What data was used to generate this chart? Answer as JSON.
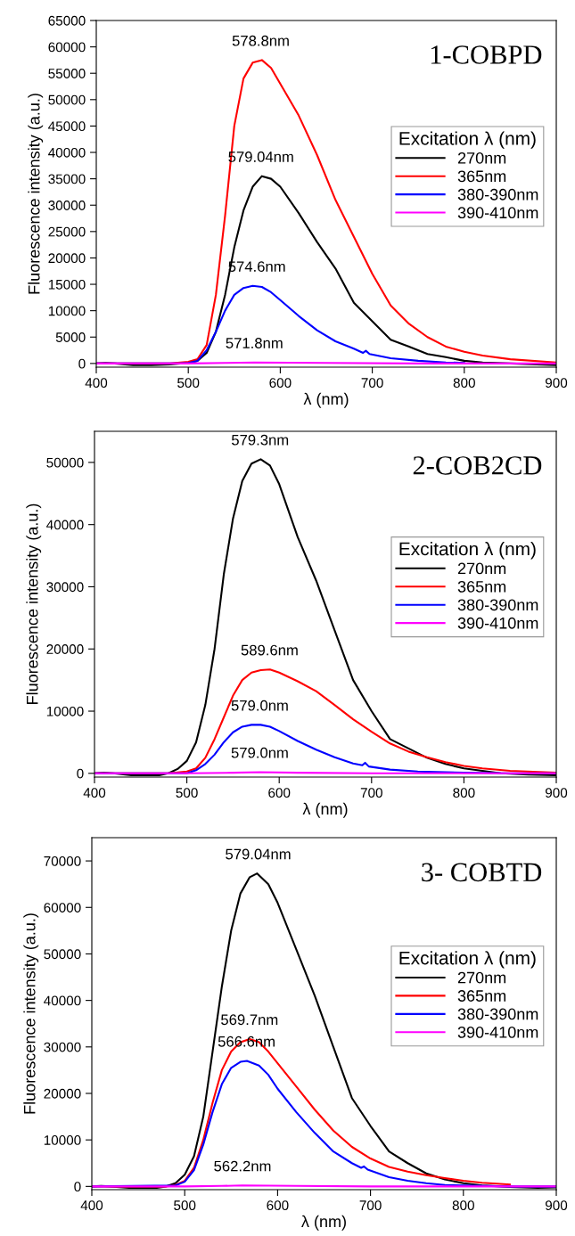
{
  "chart_data": [
    {
      "type": "line",
      "title": "1-COBPD",
      "xlabel": "λ (nm)",
      "ylabel": "Fluorescence intensity (a.u.)",
      "legend_title": "Excitation λ (nm)",
      "legend": "right",
      "grid": false,
      "marker": "none",
      "line_style": "solid",
      "xlim": [
        400,
        900
      ],
      "xticks": [
        400,
        500,
        600,
        700,
        800,
        900
      ],
      "ylim": [
        -700,
        65000
      ],
      "yticks": [
        0,
        5000,
        10000,
        15000,
        20000,
        25000,
        30000,
        35000,
        40000,
        45000,
        50000,
        55000,
        60000,
        65000
      ],
      "series": [
        {
          "name": "270nm",
          "color": "#000000",
          "x": [
            400,
            410,
            420,
            440,
            460,
            480,
            500,
            510,
            520,
            530,
            540,
            550,
            560,
            570,
            580,
            590,
            600,
            620,
            640,
            660,
            680,
            700,
            720,
            740,
            760,
            780,
            800,
            820,
            850,
            900
          ],
          "values": [
            0,
            100,
            0,
            -300,
            -300,
            -200,
            100,
            500,
            2000,
            6000,
            13000,
            22000,
            29000,
            33500,
            35500,
            35000,
            33500,
            28500,
            23000,
            18000,
            11500,
            8000,
            4500,
            3200,
            1800,
            1200,
            500,
            200,
            0,
            -300
          ]
        },
        {
          "name": "365nm",
          "color": "#ff0000",
          "x": [
            400,
            480,
            500,
            510,
            520,
            530,
            540,
            550,
            560,
            570,
            580,
            590,
            600,
            620,
            640,
            660,
            680,
            700,
            720,
            740,
            760,
            780,
            800,
            820,
            850,
            900
          ],
          "values": [
            0,
            0,
            300,
            800,
            3500,
            13000,
            28000,
            45000,
            54000,
            57000,
            57500,
            56000,
            53000,
            47000,
            39500,
            31000,
            24000,
            17000,
            11000,
            7500,
            5000,
            3200,
            2200,
            1500,
            800,
            200
          ]
        },
        {
          "name": "380-390nm",
          "color": "#0000ff",
          "x": [
            400,
            490,
            500,
            510,
            520,
            530,
            540,
            550,
            560,
            570,
            580,
            590,
            600,
            620,
            640,
            660,
            680,
            690,
            693,
            697,
            720,
            750,
            780,
            800
          ],
          "values": [
            0,
            0,
            100,
            500,
            2500,
            6000,
            10000,
            13000,
            14300,
            14700,
            14500,
            13500,
            12000,
            9000,
            6300,
            4200,
            2800,
            2000,
            2400,
            1800,
            1000,
            500,
            200,
            100
          ]
        },
        {
          "name": "390-410nm",
          "color": "#ff00ff",
          "x": [
            400,
            500,
            540,
            572,
            650,
            750,
            900
          ],
          "values": [
            0,
            0,
            100,
            200,
            100,
            0,
            0
          ]
        }
      ],
      "annotations": [
        {
          "text": "578.8nm",
          "x": 578.8,
          "y": 57500
        },
        {
          "text": "579.04nm",
          "x": 579.04,
          "y": 35500
        },
        {
          "text": "574.6nm",
          "x": 574.6,
          "y": 14700
        },
        {
          "text": "571.8nm",
          "x": 571.8,
          "y": 200
        }
      ]
    },
    {
      "type": "line",
      "title": "2-COB2CD",
      "xlabel": "λ (nm)",
      "ylabel": "Fluorescence intensity (a.u.)",
      "legend_title": "Excitation λ (nm)",
      "legend": "right",
      "grid": false,
      "marker": "none",
      "line_style": "solid",
      "xlim": [
        400,
        900
      ],
      "xticks": [
        400,
        500,
        600,
        700,
        800,
        900
      ],
      "ylim": [
        -600,
        55000
      ],
      "yticks": [
        0,
        10000,
        20000,
        30000,
        40000,
        50000
      ],
      "series": [
        {
          "name": "270nm",
          "color": "#000000",
          "x": [
            400,
            410,
            420,
            440,
            470,
            480,
            490,
            500,
            510,
            520,
            530,
            540,
            550,
            560,
            570,
            580,
            590,
            600,
            620,
            640,
            660,
            680,
            700,
            720,
            740,
            760,
            780,
            800,
            820,
            840,
            870,
            900
          ],
          "values": [
            0,
            100,
            0,
            -300,
            -300,
            0,
            700,
            2000,
            5000,
            11000,
            20000,
            32000,
            41000,
            47000,
            49800,
            50500,
            49500,
            46500,
            38000,
            31000,
            23000,
            15000,
            10000,
            5500,
            4000,
            2500,
            1500,
            800,
            400,
            0,
            -200,
            -300
          ]
        },
        {
          "name": "365nm",
          "color": "#ff0000",
          "x": [
            400,
            480,
            500,
            510,
            520,
            530,
            540,
            550,
            560,
            570,
            580,
            590,
            600,
            620,
            640,
            660,
            680,
            700,
            720,
            740,
            760,
            780,
            800,
            820,
            850,
            900
          ],
          "values": [
            0,
            0,
            300,
            800,
            2500,
            5500,
            9000,
            12500,
            15000,
            16200,
            16600,
            16700,
            16200,
            14800,
            13200,
            11000,
            8700,
            6700,
            4800,
            3500,
            2600,
            1800,
            1200,
            800,
            400,
            100
          ]
        },
        {
          "name": "380-390nm",
          "color": "#0000ff",
          "x": [
            400,
            500,
            510,
            520,
            530,
            540,
            550,
            560,
            570,
            580,
            590,
            600,
            620,
            640,
            660,
            680,
            690,
            693,
            697,
            720,
            750,
            800,
            850,
            900
          ],
          "values": [
            0,
            0,
            500,
            1500,
            3000,
            5000,
            6600,
            7500,
            7800,
            7800,
            7500,
            6800,
            5200,
            3800,
            2600,
            1600,
            1300,
            1700,
            1100,
            600,
            300,
            100,
            0,
            0
          ]
        },
        {
          "name": "390-410nm",
          "color": "#ff00ff",
          "x": [
            400,
            500,
            550,
            579,
            620,
            700,
            800,
            900
          ],
          "values": [
            0,
            0,
            100,
            200,
            100,
            0,
            0,
            0
          ]
        }
      ],
      "annotations": [
        {
          "text": "579.3nm",
          "x": 579.3,
          "y": 50500
        },
        {
          "text": "589.6nm",
          "x": 589.6,
          "y": 16700
        },
        {
          "text": "579.0nm",
          "x": 579.0,
          "y": 7800
        },
        {
          "text": "579.0nm",
          "x": 579.0,
          "y": 200
        }
      ]
    },
    {
      "type": "line",
      "title": "3- COBTD",
      "xlabel": "λ (nm)",
      "ylabel": "Fluorescence intensity (a.u.)",
      "legend_title": "Excitation λ (nm)",
      "legend": "right",
      "grid": false,
      "marker": "none",
      "line_style": "solid",
      "xlim": [
        400,
        900
      ],
      "xticks": [
        400,
        500,
        600,
        700,
        800,
        900
      ],
      "ylim": [
        -700,
        75000
      ],
      "yticks": [
        0,
        10000,
        20000,
        30000,
        40000,
        50000,
        60000,
        70000
      ],
      "series": [
        {
          "name": "270nm",
          "color": "#000000",
          "x": [
            400,
            410,
            420,
            440,
            470,
            480,
            490,
            500,
            510,
            520,
            530,
            540,
            550,
            560,
            570,
            578,
            590,
            600,
            620,
            640,
            660,
            680,
            700,
            720,
            740,
            760,
            780,
            800,
            820,
            850,
            880,
            900
          ],
          "values": [
            0,
            100,
            0,
            -300,
            -300,
            0,
            700,
            2500,
            6500,
            15000,
            29000,
            43000,
            55000,
            63000,
            66500,
            67300,
            65000,
            61000,
            51000,
            41000,
            30000,
            19000,
            13000,
            7500,
            5000,
            2800,
            1500,
            700,
            200,
            -100,
            -300,
            -200
          ]
        },
        {
          "name": "365nm",
          "color": "#ff0000",
          "x": [
            400,
            480,
            490,
            500,
            510,
            520,
            530,
            540,
            550,
            560,
            570,
            580,
            590,
            600,
            620,
            640,
            660,
            680,
            700,
            720,
            740,
            760,
            780,
            800,
            820,
            850
          ],
          "values": [
            0,
            0,
            300,
            1200,
            4000,
            10000,
            18000,
            25000,
            29000,
            31000,
            31700,
            31000,
            29000,
            26500,
            21500,
            16500,
            12000,
            8500,
            6000,
            4200,
            3200,
            2400,
            1800,
            1200,
            800,
            400
          ]
        },
        {
          "name": "380-390nm",
          "color": "#0000ff",
          "x": [
            400,
            490,
            500,
            510,
            520,
            530,
            540,
            550,
            560,
            567,
            580,
            590,
            600,
            620,
            640,
            660,
            680,
            690,
            693,
            697,
            720,
            740,
            760,
            780,
            850,
            900
          ],
          "values": [
            0,
            200,
            1000,
            3500,
            9000,
            16000,
            22000,
            25500,
            26800,
            27000,
            26000,
            24000,
            21000,
            16000,
            11500,
            7500,
            5000,
            4000,
            4300,
            3600,
            2000,
            1200,
            700,
            300,
            0,
            0
          ]
        },
        {
          "name": "390-410nm",
          "color": "#ff00ff",
          "x": [
            400,
            500,
            540,
            562,
            620,
            700,
            800,
            900
          ],
          "values": [
            0,
            0,
            100,
            200,
            100,
            0,
            0,
            0
          ]
        }
      ],
      "annotations": [
        {
          "text": "579.04nm",
          "x": 579.04,
          "y": 67300
        },
        {
          "text": "569.7nm",
          "x": 569.7,
          "y": 31700
        },
        {
          "text": "566.6nm",
          "x": 566.6,
          "y": 27000
        },
        {
          "text": "562.2nm",
          "x": 562.2,
          "y": 200
        }
      ]
    }
  ]
}
